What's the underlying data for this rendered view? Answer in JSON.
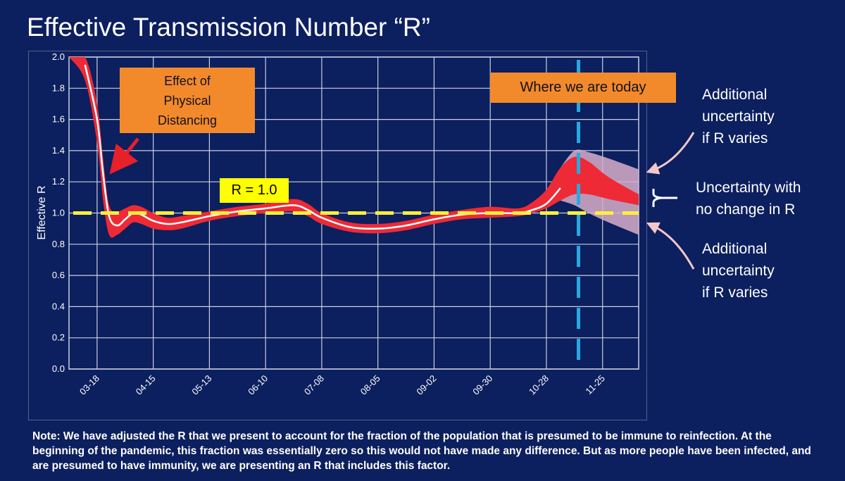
{
  "slide": {
    "title": "Effective Transmission Number “R”",
    "note": "Note: We have adjusted the R that we present to account for the fraction of the population that is presumed to be immune to reinfection.  At the beginning of the pandemic, this fraction was essentially zero so this would not have made any difference.  But as more people have been infected, and are presumed to have immunity, we are presenting an R that includes this factor."
  },
  "annotations": {
    "distancing": [
      "Effect of",
      "Physical",
      "Distancing"
    ],
    "today": "Where we are today",
    "r_equals": "R = 1.0",
    "upper_note": [
      "Additional",
      "uncertainty",
      "if R varies"
    ],
    "middle_note": [
      "Uncertainty with",
      "no change in R"
    ],
    "lower_note": [
      "Additional",
      "uncertainty",
      "if R varies"
    ]
  },
  "colors": {
    "background": "#0c1f5e",
    "band": "#ee2a36",
    "scenario_band": "#d9aeca",
    "estimate_line": "#ffffff",
    "reference_line": "#ffef3a",
    "today_line": "#29a8e0",
    "callout": "#f28a2c",
    "arrow_red": "#e8202a",
    "arrow_pink": "#f3c7c8"
  },
  "chart_data": {
    "type": "line",
    "ylabel": "Effective R",
    "xlabel": "",
    "ylim": [
      0,
      2.0
    ],
    "yticks": [
      "0.0",
      "0.2",
      "0.4",
      "0.6",
      "0.8",
      "1.0",
      "1.2",
      "1.4",
      "1.6",
      "1.8",
      "2.0"
    ],
    "xticks": [
      "03-18",
      "04-15",
      "05-13",
      "06-10",
      "07-08",
      "08-05",
      "09-02",
      "09-30",
      "10-28",
      "11-25"
    ],
    "x_unit": "days since 03-18",
    "xlim": [
      -14,
      270
    ],
    "reference_r": 1.0,
    "today_x": 240,
    "estimate": {
      "x": [
        -6,
        0,
        3,
        6,
        10,
        14,
        18,
        22,
        28,
        35,
        42,
        56,
        70,
        84,
        98,
        105,
        112,
        126,
        140,
        154,
        168,
        182,
        196,
        210,
        217,
        224,
        231
      ],
      "y": [
        1.95,
        1.6,
        1.25,
        0.98,
        0.92,
        0.96,
        1.0,
        0.99,
        0.95,
        0.93,
        0.94,
        0.98,
        1.01,
        1.03,
        1.05,
        1.02,
        0.97,
        0.91,
        0.9,
        0.92,
        0.96,
        0.99,
        1.0,
        1.0,
        1.02,
        1.06,
        1.16
      ]
    },
    "band": {
      "x": [
        -14,
        -6,
        0,
        3,
        6,
        10,
        14,
        18,
        22,
        28,
        35,
        42,
        56,
        70,
        84,
        98,
        105,
        112,
        126,
        140,
        154,
        168,
        182,
        196,
        210,
        217,
        224,
        231,
        238,
        245,
        255,
        270
      ],
      "upper": [
        2.0,
        2.0,
        1.7,
        1.35,
        1.05,
        1.01,
        1.03,
        1.05,
        1.04,
        1.0,
        0.97,
        0.98,
        1.01,
        1.04,
        1.06,
        1.09,
        1.06,
        1.0,
        0.94,
        0.93,
        0.95,
        0.99,
        1.02,
        1.04,
        1.03,
        1.07,
        1.15,
        1.29,
        1.36,
        1.33,
        1.23,
        1.12
      ],
      "lower": [
        2.0,
        1.85,
        1.45,
        1.08,
        0.86,
        0.86,
        0.9,
        0.94,
        0.93,
        0.9,
        0.89,
        0.9,
        0.95,
        0.98,
        1.0,
        1.01,
        0.98,
        0.93,
        0.88,
        0.87,
        0.89,
        0.93,
        0.96,
        0.97,
        0.98,
        1.0,
        1.03,
        1.08,
        1.12,
        1.12,
        1.09,
        1.05
      ]
    },
    "scenario_band": {
      "x": [
        231,
        238,
        245,
        255,
        270
      ],
      "upper": [
        1.29,
        1.4,
        1.39,
        1.35,
        1.28
      ],
      "lower": [
        1.08,
        1.05,
        1.0,
        0.94,
        0.86
      ]
    }
  }
}
